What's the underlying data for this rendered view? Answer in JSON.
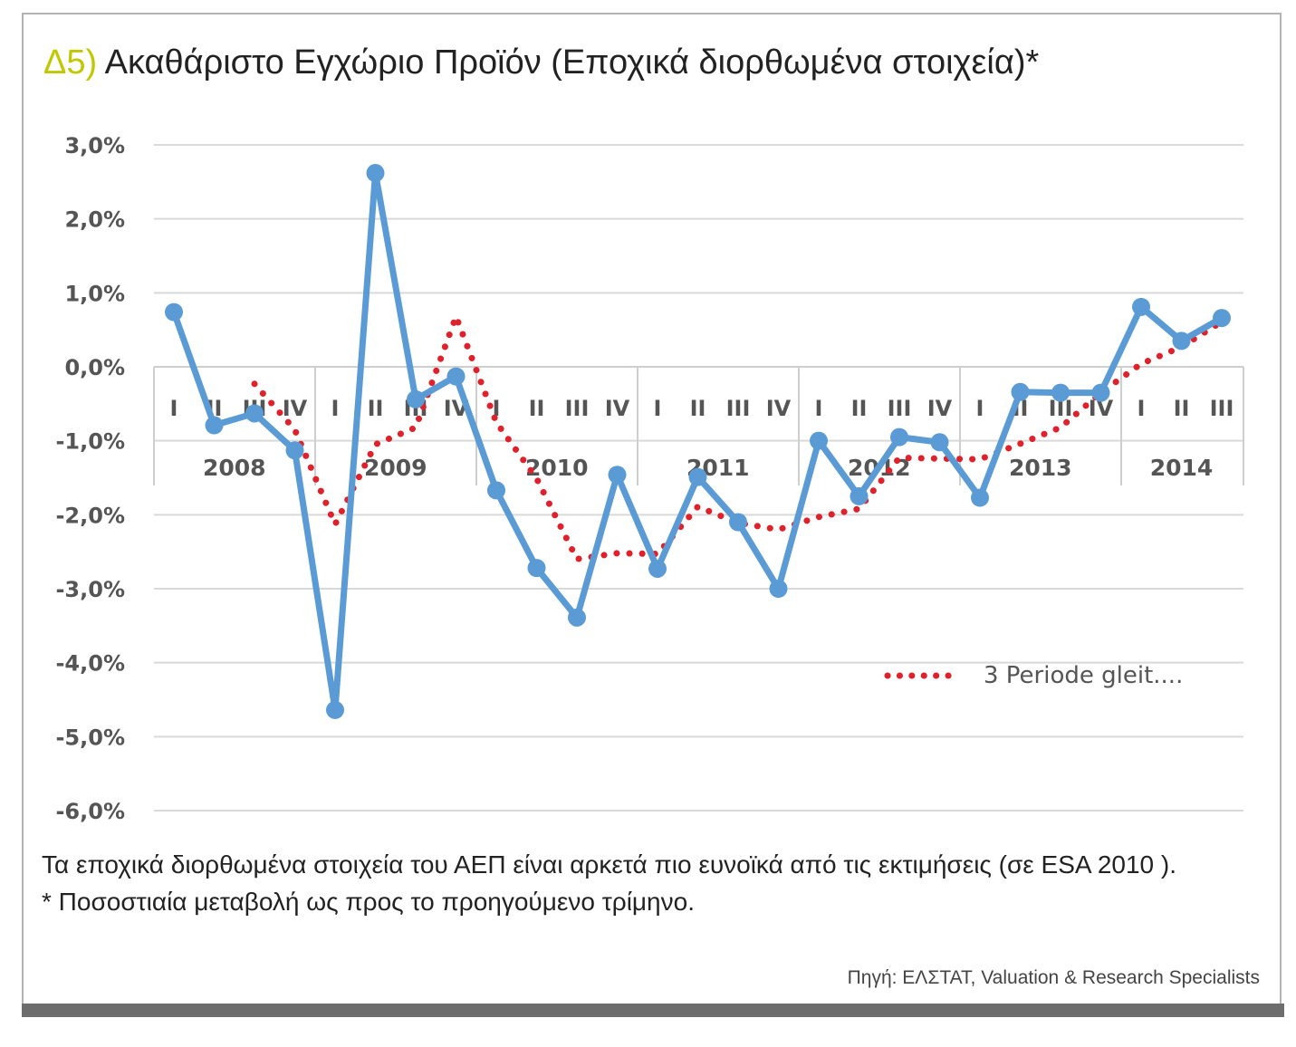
{
  "title": {
    "number": "Δ5)",
    "text": " Ακαθάριστο Εγχώριο Προϊόν (Εποχικά διορθωμένα στοιχεία)*"
  },
  "chart_data": {
    "type": "line",
    "y_ticks": [
      "3,0%",
      "2,0%",
      "1,0%",
      "0,0%",
      "-1,0%",
      "-2,0%",
      "-3,0%",
      "-4,0%",
      "-5,0%",
      "-6,0%"
    ],
    "ylim": [
      -6.0,
      3.0
    ],
    "grid": true,
    "quarters": [
      "I",
      "II",
      "III",
      "IV",
      "I",
      "II",
      "III",
      "IV",
      "I",
      "II",
      "III",
      "IV",
      "I",
      "II",
      "III",
      "IV",
      "I",
      "II",
      "III",
      "IV",
      "I",
      "II",
      "III",
      "IV",
      "I",
      "II",
      "III"
    ],
    "years": [
      "2008",
      "2009",
      "2010",
      "2011",
      "2012",
      "2013",
      "2014"
    ],
    "series": [
      {
        "color": "#5b9bd5",
        "values": [
          0.74,
          -0.79,
          -0.63,
          -1.13,
          -4.64,
          2.62,
          -0.44,
          -0.13,
          -1.67,
          -2.72,
          -3.39,
          -1.46,
          -2.73,
          -1.49,
          -2.1,
          -3.0,
          -1.0,
          -1.75,
          -0.95,
          -1.02,
          -1.77,
          -0.34,
          -0.35,
          -0.35,
          0.81,
          0.35,
          0.66
        ]
      },
      {
        "name": "3 Periode gleit....",
        "color": "#e0202a",
        "style": "dotted",
        "values": [
          null,
          null,
          -0.23,
          -0.85,
          -2.13,
          -1.05,
          -0.82,
          0.68,
          -0.75,
          -1.51,
          -2.6,
          -2.52,
          -2.53,
          -1.89,
          -2.11,
          -2.2,
          -2.03,
          -1.92,
          -1.23,
          -1.24,
          -1.25,
          -1.04,
          -0.82,
          -0.35,
          0.04,
          0.27,
          0.61
        ]
      }
    ],
    "legend_position": "bottom-right"
  },
  "notes": {
    "line1": "Τα εποχικά διορθωμένα στοιχεία του ΑΕΠ είναι αρκετά πιο ευνοϊκά από τις εκτιμήσεις (σε ESA 2010 ).",
    "line2": "* Ποσοστιαία μεταβολή ως προς το προηγούμενο τρίμηνο."
  },
  "source": "Πηγή: ΕΛΣΤΑΤ, Valuation & Research Specialists"
}
